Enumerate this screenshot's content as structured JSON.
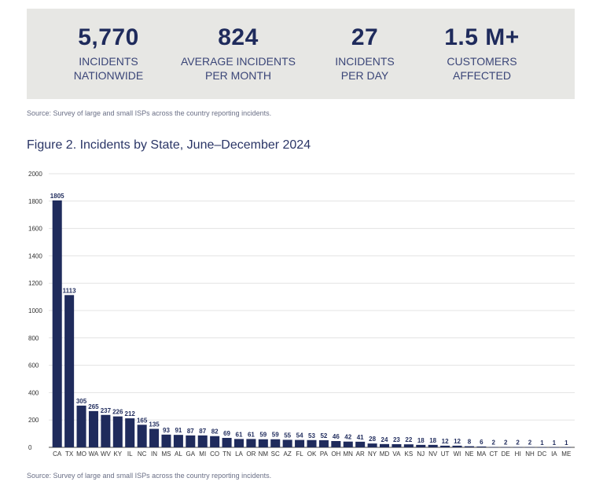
{
  "stats": [
    {
      "value": "5,770",
      "label1": "INCIDENTS",
      "label2": "NATIONWIDE"
    },
    {
      "value": "824",
      "label1": "AVERAGE INCIDENTS",
      "label2": "PER MONTH"
    },
    {
      "value": "27",
      "label1": "INCIDENTS",
      "label2": "PER DAY"
    },
    {
      "value": "1.5 M+",
      "label1": "CUSTOMERS",
      "label2": "AFFECTED"
    }
  ],
  "source_top": "Source: Survey of large and small ISPs across the country reporting incidents.",
  "source_bottom": "Source: Survey of large and small ISPs across the country reporting incidents.",
  "colors": {
    "bar": "#1f2b5c",
    "grid": "#e3e3e3",
    "axis": "#444444"
  },
  "chart_data": {
    "type": "bar",
    "title": "Figure 2.  Incidents by State, June–December 2024",
    "xlabel": "",
    "ylabel": "",
    "ylim": [
      0,
      2000
    ],
    "yticks": [
      0,
      200,
      400,
      600,
      800,
      1000,
      1200,
      1400,
      1600,
      1800,
      2000
    ],
    "grid": true,
    "categories": [
      "CA",
      "TX",
      "MO",
      "WA",
      "WV",
      "KY",
      "IL",
      "NC",
      "IN",
      "MS",
      "AL",
      "GA",
      "MI",
      "CO",
      "TN",
      "LA",
      "OR",
      "NM",
      "SC",
      "AZ",
      "FL",
      "OK",
      "PA",
      "OH",
      "MN",
      "AR",
      "NY",
      "MD",
      "VA",
      "KS",
      "NJ",
      "NV",
      "UT",
      "WI",
      "NE",
      "MA",
      "CT",
      "DE",
      "HI",
      "NH",
      "DC",
      "IA",
      "ME"
    ],
    "values": [
      1805,
      1113,
      305,
      265,
      237,
      226,
      212,
      165,
      135,
      93,
      91,
      87,
      87,
      82,
      69,
      61,
      61,
      59,
      59,
      55,
      54,
      53,
      52,
      46,
      42,
      41,
      28,
      24,
      23,
      22,
      18,
      18,
      12,
      12,
      8,
      6,
      2,
      2,
      2,
      2,
      1,
      1,
      1
    ]
  }
}
